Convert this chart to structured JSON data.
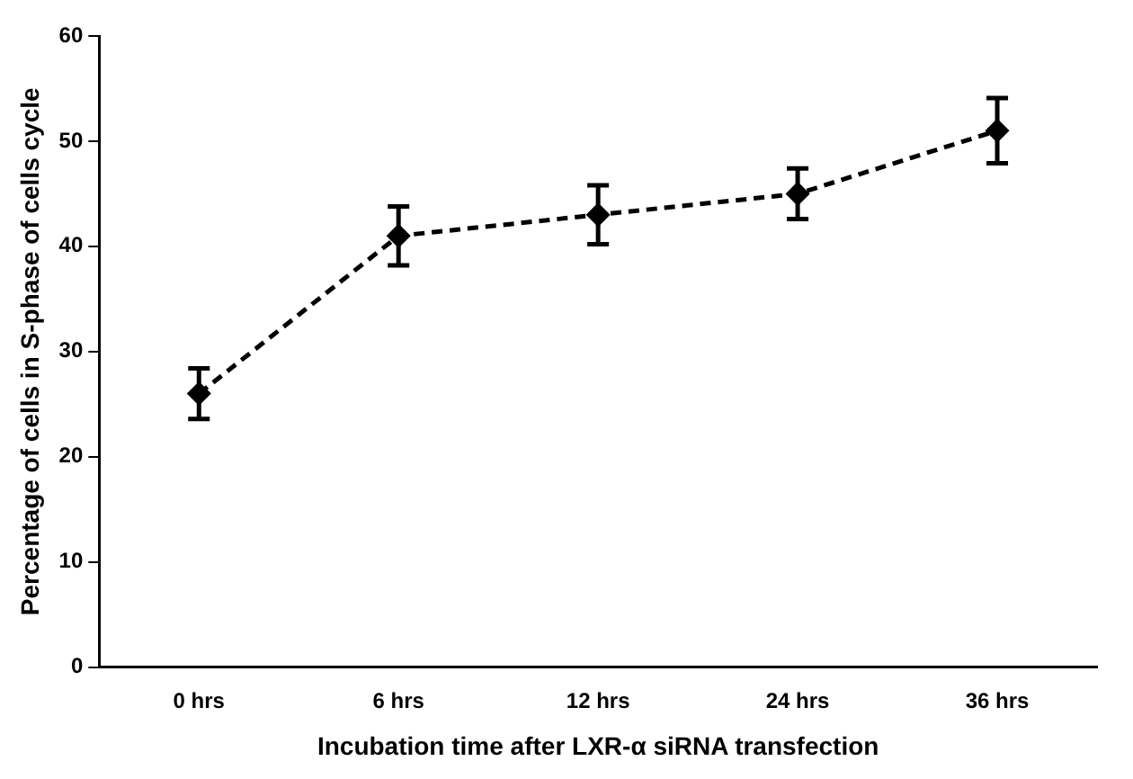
{
  "chart_data": {
    "type": "line",
    "xlabel": "Incubation time after LXR-α siRNA transfection",
    "ylabel": "Percentage of cells in S-phase of cells cycle",
    "categories": [
      "0 hrs",
      "6 hrs",
      "12 hrs",
      "24 hrs",
      "36 hrs"
    ],
    "series": [
      {
        "color": "#000000",
        "values": [
          26,
          41,
          43,
          45,
          51
        ],
        "errors": [
          2.4,
          2.8,
          2.8,
          2.4,
          3.1
        ]
      }
    ],
    "ylim": [
      0,
      60
    ],
    "yticks": [
      0,
      10,
      20,
      30,
      40,
      50,
      60
    ],
    "grid": false,
    "legend": false,
    "marker": "diamond",
    "line_style": "dashed"
  }
}
